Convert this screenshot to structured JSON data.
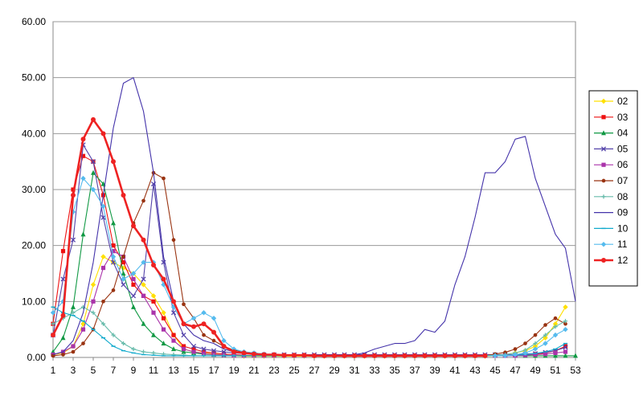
{
  "chart_data": {
    "type": "line",
    "title": "",
    "xlabel": "",
    "ylabel": "",
    "ylim": [
      0,
      60
    ],
    "y_ticks": [
      "0.00",
      "10.00",
      "20.00",
      "30.00",
      "40.00",
      "50.00",
      "60.00"
    ],
    "x_ticks": [
      "1",
      "3",
      "5",
      "7",
      "9",
      "11",
      "13",
      "15",
      "17",
      "19",
      "21",
      "23",
      "25",
      "27",
      "29",
      "31",
      "33",
      "35",
      "37",
      "39",
      "41",
      "43",
      "45",
      "47",
      "49",
      "51",
      "53"
    ],
    "grid": true,
    "legend_position": "right",
    "series": [
      {
        "name": "02",
        "color": "#ffe000",
        "marker": "diamond",
        "x": [
          1,
          2,
          3,
          4,
          5,
          6,
          7,
          8,
          9,
          10,
          11,
          12,
          13,
          14,
          15,
          16,
          17,
          18,
          19,
          20,
          21,
          22,
          23,
          24,
          25,
          26,
          27,
          28,
          29,
          30,
          31,
          32,
          33,
          34,
          35,
          36,
          37,
          38,
          39,
          40,
          41,
          42,
          43,
          44,
          45,
          46,
          47,
          48,
          49,
          50,
          51,
          52
        ],
        "values": [
          0.5,
          0.8,
          2,
          6,
          13,
          18,
          17,
          16,
          15,
          13,
          11,
          8,
          4,
          1.5,
          1,
          0.8,
          0.6,
          0.4,
          0.3,
          0.2,
          0.2,
          0.2,
          0.2,
          0.2,
          0.2,
          0.2,
          0.2,
          0.2,
          0.2,
          0.2,
          0.2,
          0.2,
          0.2,
          0.2,
          0.2,
          0.2,
          0.2,
          0.2,
          0.2,
          0.2,
          0.2,
          0.2,
          0.2,
          0.2,
          0.3,
          0.5,
          0.8,
          1.2,
          2,
          3.5,
          6,
          9
        ]
      },
      {
        "name": "03",
        "color": "#ee1111",
        "marker": "square",
        "x": [
          1,
          2,
          3,
          4,
          5,
          6,
          7,
          8,
          9,
          10,
          11,
          12,
          13,
          14,
          15,
          16,
          17,
          18,
          19,
          20,
          21,
          22,
          23,
          24,
          25,
          26,
          27,
          28,
          29,
          30,
          31,
          32,
          33,
          34,
          35,
          36,
          37,
          38,
          39,
          40,
          41,
          42,
          43,
          44,
          45,
          46,
          47,
          48,
          49,
          50,
          51,
          52
        ],
        "values": [
          6,
          19,
          30,
          36,
          35,
          29,
          20,
          17,
          13,
          11,
          10,
          7,
          4,
          2,
          1.5,
          1,
          0.8,
          0.6,
          0.5,
          0.4,
          0.3,
          0.3,
          0.3,
          0.3,
          0.3,
          0.3,
          0.3,
          0.3,
          0.3,
          0.3,
          0.3,
          0.3,
          0.3,
          0.3,
          0.3,
          0.3,
          0.3,
          0.3,
          0.3,
          0.3,
          0.3,
          0.3,
          0.3,
          0.3,
          0.3,
          0.3,
          0.4,
          0.5,
          0.6,
          0.8,
          1.2,
          2
        ]
      },
      {
        "name": "04",
        "color": "#119944",
        "marker": "triangle",
        "x": [
          1,
          2,
          3,
          4,
          5,
          6,
          7,
          8,
          9,
          10,
          11,
          12,
          13,
          14,
          15,
          16,
          17,
          18,
          19,
          20,
          21,
          22,
          23,
          24,
          25,
          26,
          27,
          28,
          29,
          30,
          31,
          32,
          33,
          34,
          35,
          36,
          37,
          38,
          39,
          40,
          41,
          42,
          43,
          44,
          45,
          46,
          47,
          48,
          49,
          50,
          51,
          52,
          53
        ],
        "values": [
          1,
          3.5,
          9,
          22,
          33,
          31,
          24,
          15,
          9,
          6,
          4,
          2.5,
          1.5,
          1,
          0.8,
          0.6,
          0.5,
          0.4,
          0.3,
          0.3,
          0.3,
          0.3,
          0.3,
          0.3,
          0.3,
          0.3,
          0.3,
          0.3,
          0.3,
          0.3,
          0.3,
          0.3,
          0.3,
          0.3,
          0.3,
          0.3,
          0.3,
          0.3,
          0.3,
          0.3,
          0.3,
          0.3,
          0.3,
          0.3,
          0.3,
          0.3,
          0.3,
          0.3,
          0.3,
          0.3,
          0.3,
          0.3,
          0.3
        ]
      },
      {
        "name": "05",
        "color": "#5544aa",
        "marker": "x",
        "x": [
          1,
          2,
          3,
          4,
          5,
          6,
          7,
          8,
          9,
          10,
          11,
          12,
          13,
          14,
          15,
          16,
          17,
          18,
          19,
          20,
          21,
          22,
          23,
          24,
          25,
          26,
          27,
          28,
          29,
          30,
          31,
          32,
          33,
          34,
          35,
          36,
          37,
          38,
          39,
          40,
          41,
          42,
          43,
          44,
          45,
          46,
          47,
          48,
          49,
          50,
          51,
          52
        ],
        "values": [
          4,
          14,
          21,
          38,
          35,
          25,
          17,
          13,
          11,
          14,
          31,
          17,
          8,
          4,
          2,
          1.5,
          1.2,
          1,
          0.8,
          0.7,
          0.6,
          0.5,
          0.5,
          0.5,
          0.5,
          0.5,
          0.5,
          0.5,
          0.5,
          0.5,
          0.5,
          0.5,
          0.5,
          0.5,
          0.5,
          0.5,
          0.5,
          0.5,
          0.5,
          0.5,
          0.5,
          0.5,
          0.5,
          0.5,
          0.5,
          0.5,
          0.5,
          0.6,
          0.7,
          0.9,
          1.2,
          1.8
        ]
      },
      {
        "name": "06",
        "color": "#aa33aa",
        "marker": "square",
        "x": [
          1,
          2,
          3,
          4,
          5,
          6,
          7,
          8,
          9,
          10,
          11,
          12,
          13,
          14,
          15,
          16,
          17,
          18,
          19,
          20,
          21,
          22,
          23,
          24,
          25,
          26,
          27,
          28,
          29,
          30,
          31,
          32,
          33,
          34,
          35,
          36,
          37,
          38,
          39,
          40,
          41,
          42,
          43,
          44,
          45,
          46,
          47,
          48,
          49,
          50,
          51,
          52
        ],
        "values": [
          0.5,
          1,
          2,
          5,
          10,
          16,
          19,
          18,
          14,
          11,
          8,
          5,
          3,
          1.5,
          1,
          0.7,
          0.5,
          0.4,
          0.3,
          0.3,
          0.3,
          0.3,
          0.3,
          0.3,
          0.3,
          0.3,
          0.3,
          0.3,
          0.3,
          0.3,
          0.3,
          0.3,
          0.3,
          0.3,
          0.3,
          0.3,
          0.3,
          0.3,
          0.3,
          0.3,
          0.3,
          0.3,
          0.3,
          0.3,
          0.3,
          0.3,
          0.3,
          0.4,
          0.5,
          0.6,
          0.8,
          1
        ]
      },
      {
        "name": "07",
        "color": "#993311",
        "marker": "circle",
        "x": [
          1,
          2,
          3,
          4,
          5,
          6,
          7,
          8,
          9,
          10,
          11,
          12,
          13,
          14,
          15,
          16,
          17,
          18,
          19,
          20,
          21,
          22,
          23,
          24,
          25,
          26,
          27,
          28,
          29,
          30,
          31,
          32,
          33,
          34,
          35,
          36,
          37,
          38,
          39,
          40,
          41,
          42,
          43,
          44,
          45,
          46,
          47,
          48,
          49,
          50,
          51,
          52
        ],
        "values": [
          0.3,
          0.5,
          1,
          2.5,
          5,
          10,
          12,
          18,
          24,
          28,
          33,
          32,
          21,
          9.5,
          7,
          4,
          3,
          2,
          1.3,
          1,
          0.8,
          0.6,
          0.5,
          0.4,
          0.3,
          0.3,
          0.3,
          0.3,
          0.3,
          0.3,
          0.3,
          0.3,
          0.3,
          0.3,
          0.3,
          0.3,
          0.3,
          0.3,
          0.3,
          0.3,
          0.3,
          0.3,
          0.3,
          0.3,
          0.6,
          0.9,
          1.5,
          2.5,
          4,
          5.8,
          7,
          6
        ]
      },
      {
        "name": "08",
        "color": "#66bbaa",
        "marker": "plus",
        "x": [
          1,
          2,
          3,
          4,
          5,
          6,
          7,
          8,
          9,
          10,
          11,
          12,
          13,
          14,
          15,
          16,
          17,
          18,
          19,
          20,
          21,
          22,
          23,
          24,
          25,
          26,
          27,
          28,
          29,
          30,
          31,
          32,
          33,
          34,
          35,
          36,
          37,
          38,
          39,
          40,
          41,
          42,
          43,
          44,
          45,
          46,
          47,
          48,
          49,
          50,
          51,
          52
        ],
        "values": [
          6,
          7,
          8,
          9,
          8,
          6,
          4,
          2.5,
          1.5,
          1,
          0.8,
          0.6,
          0.5,
          0.4,
          0.3,
          0.3,
          0.3,
          0.3,
          0.3,
          0.3,
          0.3,
          0.3,
          0.3,
          0.3,
          0.3,
          0.3,
          0.3,
          0.3,
          0.3,
          0.3,
          0.3,
          0.3,
          0.3,
          0.3,
          0.3,
          0.3,
          0.3,
          0.3,
          0.3,
          0.3,
          0.3,
          0.3,
          0.3,
          0.3,
          0.4,
          0.5,
          0.8,
          1.3,
          2.5,
          4,
          5.5,
          6.5
        ]
      },
      {
        "name": "09",
        "color": "#4433aa",
        "marker": "none",
        "x": [
          1,
          2,
          3,
          4,
          5,
          6,
          7,
          8,
          9,
          10,
          11,
          12,
          13,
          14,
          15,
          16,
          17,
          18,
          19,
          20,
          21,
          22,
          23,
          24,
          25,
          26,
          27,
          28,
          29,
          30,
          31,
          32,
          33,
          34,
          35,
          36,
          37,
          38,
          39,
          40,
          41,
          42,
          43,
          44,
          45,
          46,
          47,
          48,
          49,
          50,
          51,
          52,
          53
        ],
        "values": [
          0.5,
          1,
          3,
          8,
          17,
          29,
          41,
          49,
          50,
          44,
          33,
          18,
          10,
          6,
          4,
          3,
          2.5,
          1.5,
          1,
          0.8,
          0.6,
          0.5,
          0.5,
          0.5,
          0.5,
          0.5,
          0.5,
          0.5,
          0.5,
          0.5,
          0.5,
          0.8,
          1.5,
          2,
          2.5,
          2.5,
          3,
          5,
          4.5,
          6.5,
          13,
          18,
          25,
          33,
          33,
          35,
          39,
          39.5,
          32,
          27,
          22,
          19.5,
          10
        ]
      },
      {
        "name": "10",
        "color": "#11aacc",
        "marker": "dash",
        "x": [
          1,
          2,
          3,
          4,
          5,
          6,
          7,
          8,
          9,
          10,
          11,
          12,
          13,
          14,
          15,
          16,
          17,
          18,
          19,
          20,
          21,
          22,
          23,
          24,
          25,
          26,
          27,
          28,
          29,
          30,
          31,
          32,
          33,
          34,
          35,
          36,
          37,
          38,
          39,
          40,
          41,
          42,
          43,
          44,
          45,
          46,
          47,
          48,
          49,
          50,
          51,
          52
        ],
        "values": [
          9,
          8,
          7.5,
          6.5,
          5,
          3.5,
          2,
          1.2,
          0.8,
          0.5,
          0.4,
          0.3,
          0.3,
          0.3,
          0.3,
          0.3,
          0.3,
          0.3,
          0.3,
          0.3,
          0.3,
          0.3,
          0.3,
          0.3,
          0.3,
          0.3,
          0.3,
          0.3,
          0.3,
          0.3,
          0.3,
          0.3,
          0.3,
          0.3,
          0.3,
          0.3,
          0.3,
          0.3,
          0.3,
          0.3,
          0.3,
          0.3,
          0.3,
          0.3,
          0.3,
          0.3,
          0.4,
          0.5,
          0.7,
          1,
          1.5,
          2.5
        ]
      },
      {
        "name": "11",
        "color": "#55bbee",
        "marker": "diamond",
        "x": [
          1,
          2,
          3,
          4,
          5,
          6,
          7,
          8,
          9,
          10,
          11,
          12,
          13,
          14,
          15,
          16,
          17,
          18,
          19,
          20,
          21,
          22,
          23,
          24,
          25,
          26,
          27,
          28,
          29,
          30,
          31,
          32,
          33,
          34,
          35,
          36,
          37,
          38,
          39,
          40,
          41,
          42,
          43,
          44,
          45,
          46,
          47,
          48,
          49,
          50,
          51,
          52
        ],
        "values": [
          8,
          10,
          26,
          32,
          30,
          27,
          18,
          14,
          15,
          17,
          17,
          13,
          9,
          6,
          7,
          8,
          7,
          3,
          1.5,
          1,
          0.8,
          0.6,
          0.5,
          0.4,
          0.3,
          0.3,
          0.3,
          0.3,
          0.3,
          0.3,
          0.3,
          0.3,
          0.3,
          0.3,
          0.3,
          0.3,
          0.3,
          0.3,
          0.3,
          0.3,
          0.3,
          0.3,
          0.3,
          0.3,
          0.3,
          0.3,
          0.5,
          0.8,
          1.5,
          2.5,
          4,
          5
        ]
      },
      {
        "name": "12",
        "color": "#ee2222",
        "marker": "circle-bold",
        "x": [
          1,
          2,
          3,
          4,
          5,
          6,
          7,
          8,
          9,
          10,
          11,
          12,
          13,
          14,
          15,
          16,
          17,
          18,
          19,
          20,
          21,
          22,
          23,
          24,
          25,
          26,
          27,
          28,
          29,
          30,
          31,
          32,
          33,
          34,
          35,
          36,
          37,
          38,
          39,
          40,
          41,
          42,
          43,
          44
        ],
        "values": [
          4,
          7.5,
          29,
          39,
          42.5,
          40,
          35,
          29,
          23.5,
          21,
          16.5,
          14,
          10,
          6,
          5.5,
          6,
          4.5,
          2,
          1,
          0.8,
          0.6,
          0.5,
          0.5,
          0.4,
          0.4,
          0.4,
          0.3,
          0.3,
          0.3,
          0.3,
          0.3,
          0.3,
          0.3,
          0.3,
          0.3,
          0.3,
          0.3,
          0.3,
          0.3,
          0.3,
          0.3,
          0.3,
          0.3,
          0.3
        ]
      }
    ]
  }
}
